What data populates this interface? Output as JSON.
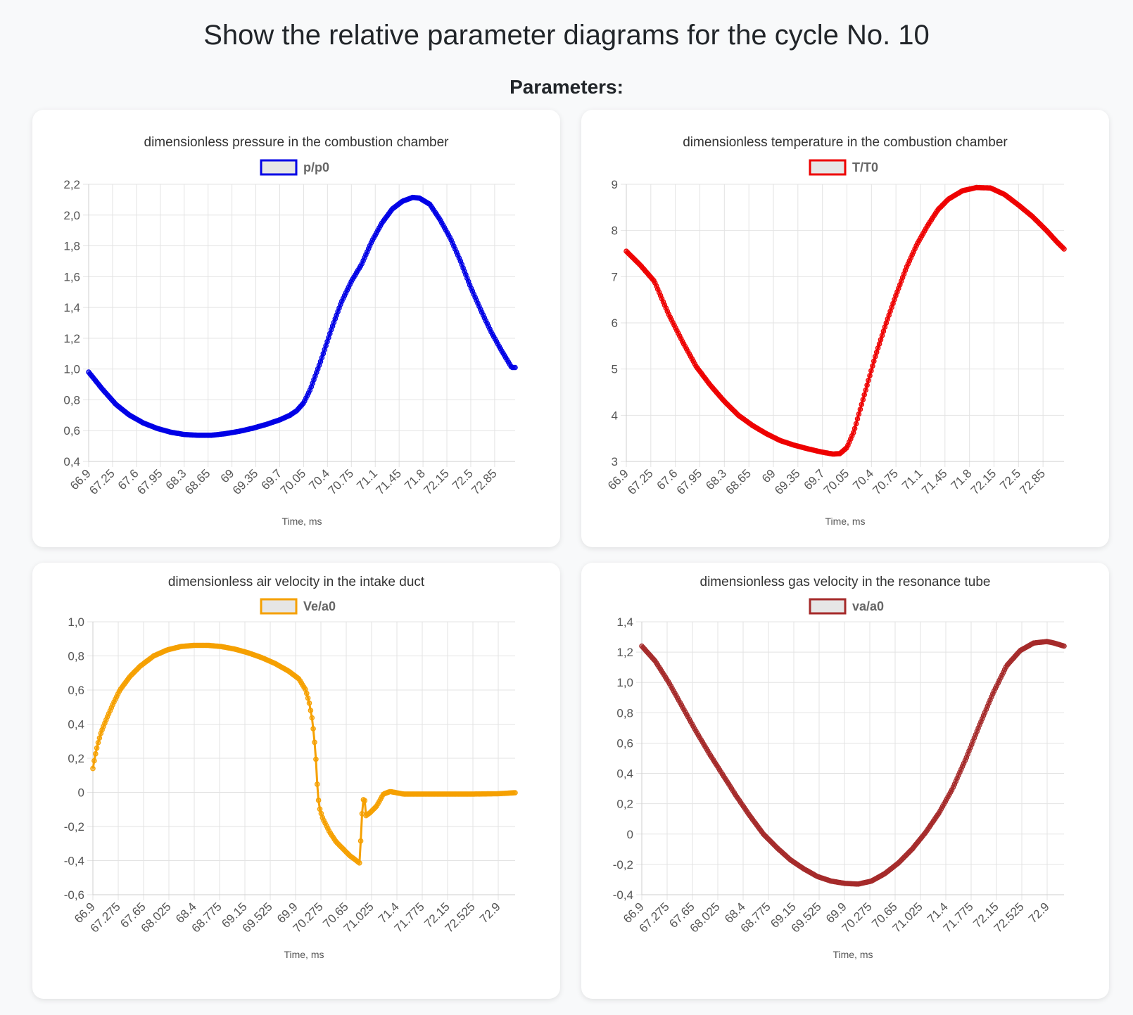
{
  "page": {
    "title": "Show the relative parameter diagrams for the cycle No. 10",
    "section_label": "Parameters:"
  },
  "chart_data": [
    {
      "id": "pressure",
      "type": "line",
      "title": "dimensionless pressure in the combustion chamber",
      "legend": "p/p0",
      "color": "#0000e6",
      "xlabel": "Time, ms",
      "ylabel": "",
      "ylim": [
        0.4,
        2.2
      ],
      "yticks": [
        "0,4",
        "0,6",
        "0,8",
        "1,0",
        "1,2",
        "1,4",
        "1,6",
        "1,8",
        "2,0",
        "2,2"
      ],
      "xlim": [
        66.9,
        73.15
      ],
      "xticks": [
        "66.9",
        "67.25",
        "67.6",
        "67.95",
        "68.3",
        "68.65",
        "69",
        "69.35",
        "69.7",
        "70.05",
        "70.4",
        "70.75",
        "71.1",
        "71.45",
        "71.8",
        "72.15",
        "72.5",
        "72.85"
      ],
      "xtick_step": 0.35,
      "curve": [
        [
          66.9,
          0.98
        ],
        [
          67.1,
          0.87
        ],
        [
          67.3,
          0.77
        ],
        [
          67.5,
          0.7
        ],
        [
          67.7,
          0.65
        ],
        [
          67.9,
          0.615
        ],
        [
          68.1,
          0.59
        ],
        [
          68.3,
          0.575
        ],
        [
          68.5,
          0.57
        ],
        [
          68.7,
          0.57
        ],
        [
          68.9,
          0.58
        ],
        [
          69.1,
          0.595
        ],
        [
          69.3,
          0.615
        ],
        [
          69.5,
          0.64
        ],
        [
          69.7,
          0.67
        ],
        [
          69.85,
          0.7
        ],
        [
          69.95,
          0.73
        ],
        [
          70.05,
          0.78
        ],
        [
          70.15,
          0.87
        ],
        [
          70.3,
          1.05
        ],
        [
          70.45,
          1.25
        ],
        [
          70.6,
          1.43
        ],
        [
          70.75,
          1.57
        ],
        [
          70.9,
          1.68
        ],
        [
          71.05,
          1.83
        ],
        [
          71.2,
          1.95
        ],
        [
          71.35,
          2.04
        ],
        [
          71.5,
          2.09
        ],
        [
          71.65,
          2.115
        ],
        [
          71.75,
          2.11
        ],
        [
          71.9,
          2.07
        ],
        [
          72.05,
          1.97
        ],
        [
          72.2,
          1.85
        ],
        [
          72.35,
          1.7
        ],
        [
          72.5,
          1.53
        ],
        [
          72.65,
          1.38
        ],
        [
          72.8,
          1.24
        ],
        [
          72.95,
          1.12
        ],
        [
          73.1,
          1.01
        ]
      ]
    },
    {
      "id": "temperature",
      "type": "line",
      "title": "dimensionless temperature in the combustion chamber",
      "legend": "T/T0",
      "color": "#ee0000",
      "xlabel": "Time, ms",
      "ylabel": "",
      "ylim": [
        3,
        9
      ],
      "yticks": [
        "3",
        "4",
        "5",
        "6",
        "7",
        "8",
        "9"
      ],
      "xlim": [
        66.9,
        73.15
      ],
      "xticks": [
        "66.9",
        "67.25",
        "67.6",
        "67.95",
        "68.3",
        "68.65",
        "69",
        "69.35",
        "69.7",
        "70.05",
        "70.4",
        "70.75",
        "71.1",
        "71.45",
        "71.8",
        "72.15",
        "72.5",
        "72.85"
      ],
      "xtick_step": 0.35,
      "curve": [
        [
          66.9,
          7.55
        ],
        [
          67.1,
          7.25
        ],
        [
          67.3,
          6.9
        ],
        [
          67.5,
          6.2
        ],
        [
          67.7,
          5.6
        ],
        [
          67.9,
          5.05
        ],
        [
          68.1,
          4.65
        ],
        [
          68.3,
          4.3
        ],
        [
          68.5,
          4.0
        ],
        [
          68.7,
          3.78
        ],
        [
          68.9,
          3.6
        ],
        [
          69.1,
          3.45
        ],
        [
          69.3,
          3.35
        ],
        [
          69.5,
          3.27
        ],
        [
          69.7,
          3.2
        ],
        [
          69.85,
          3.16
        ],
        [
          69.95,
          3.17
        ],
        [
          70.05,
          3.3
        ],
        [
          70.15,
          3.65
        ],
        [
          70.3,
          4.45
        ],
        [
          70.45,
          5.25
        ],
        [
          70.6,
          5.95
        ],
        [
          70.75,
          6.6
        ],
        [
          70.9,
          7.2
        ],
        [
          71.05,
          7.7
        ],
        [
          71.2,
          8.1
        ],
        [
          71.35,
          8.45
        ],
        [
          71.5,
          8.68
        ],
        [
          71.7,
          8.86
        ],
        [
          71.9,
          8.93
        ],
        [
          72.1,
          8.92
        ],
        [
          72.3,
          8.78
        ],
        [
          72.5,
          8.55
        ],
        [
          72.7,
          8.3
        ],
        [
          72.9,
          8.0
        ],
        [
          73.05,
          7.75
        ],
        [
          73.15,
          7.6
        ]
      ]
    },
    {
      "id": "air-velocity",
      "type": "line",
      "title": "dimensionless air velocity in the intake duct",
      "legend": "Ve/a0",
      "color": "#f5a000",
      "xlabel": "Time, ms",
      "ylabel": "",
      "ylim": [
        -0.6,
        1.0
      ],
      "yticks": [
        "-0,6",
        "-0,4",
        "-0,2",
        "0",
        "0,2",
        "0,4",
        "0,6",
        "0,8",
        "1,0"
      ],
      "xlim": [
        66.9,
        73.15
      ],
      "xticks": [
        "66.9",
        "67.275",
        "67.65",
        "68.025",
        "68.4",
        "68.775",
        "69.15",
        "69.525",
        "69.9",
        "70.275",
        "70.65",
        "71.025",
        "71.4",
        "71.775",
        "72.15",
        "72.525",
        "72.9"
      ],
      "xtick_step": 0.375,
      "curve": [
        [
          66.9,
          0.14
        ],
        [
          66.93,
          0.21
        ],
        [
          66.97,
          0.28
        ],
        [
          67.02,
          0.35
        ],
        [
          67.1,
          0.43
        ],
        [
          67.2,
          0.52
        ],
        [
          67.3,
          0.6
        ],
        [
          67.45,
          0.68
        ],
        [
          67.6,
          0.74
        ],
        [
          67.8,
          0.8
        ],
        [
          68.0,
          0.835
        ],
        [
          68.2,
          0.855
        ],
        [
          68.4,
          0.862
        ],
        [
          68.6,
          0.862
        ],
        [
          68.8,
          0.855
        ],
        [
          69.0,
          0.84
        ],
        [
          69.2,
          0.818
        ],
        [
          69.4,
          0.79
        ],
        [
          69.6,
          0.755
        ],
        [
          69.8,
          0.71
        ],
        [
          69.95,
          0.665
        ],
        [
          70.05,
          0.6
        ],
        [
          70.1,
          0.53
        ],
        [
          70.15,
          0.42
        ],
        [
          70.18,
          0.3
        ],
        [
          70.2,
          0.2
        ],
        [
          70.22,
          0.05
        ],
        [
          70.23,
          -0.02
        ],
        [
          70.26,
          -0.1
        ],
        [
          70.3,
          -0.15
        ],
        [
          70.4,
          -0.23
        ],
        [
          70.5,
          -0.29
        ],
        [
          70.6,
          -0.33
        ],
        [
          70.7,
          -0.37
        ],
        [
          70.8,
          -0.4
        ],
        [
          70.85,
          -0.415
        ],
        [
          70.87,
          -0.24
        ],
        [
          70.89,
          -0.08
        ],
        [
          70.92,
          0.0
        ],
        [
          70.93,
          -0.14
        ],
        [
          71.0,
          -0.12
        ],
        [
          71.1,
          -0.08
        ],
        [
          71.2,
          -0.01
        ],
        [
          71.3,
          0.005
        ],
        [
          71.5,
          -0.01
        ],
        [
          72.0,
          -0.01
        ],
        [
          72.5,
          -0.01
        ],
        [
          72.9,
          -0.008
        ],
        [
          73.15,
          -0.002
        ]
      ]
    },
    {
      "id": "gas-velocity",
      "type": "line",
      "title": "dimensionless gas velocity in the resonance tube",
      "legend": "va/a0",
      "color": "#a52a2a",
      "xlabel": "Time, ms",
      "ylabel": "",
      "ylim": [
        -0.4,
        1.4
      ],
      "yticks": [
        "-0,4",
        "-0,2",
        "0",
        "0,2",
        "0,4",
        "0,6",
        "0,8",
        "1,0",
        "1,2",
        "1,4"
      ],
      "xlim": [
        66.9,
        73.15
      ],
      "xticks": [
        "66.9",
        "67.275",
        "67.65",
        "68.025",
        "68.4",
        "68.775",
        "69.15",
        "69.525",
        "69.9",
        "70.275",
        "70.65",
        "71.025",
        "71.4",
        "71.775",
        "72.15",
        "72.525",
        "72.9"
      ],
      "xtick_step": 0.375,
      "curve": [
        [
          66.9,
          1.24
        ],
        [
          67.1,
          1.14
        ],
        [
          67.3,
          1.0
        ],
        [
          67.5,
          0.84
        ],
        [
          67.7,
          0.68
        ],
        [
          67.9,
          0.53
        ],
        [
          68.1,
          0.39
        ],
        [
          68.3,
          0.25
        ],
        [
          68.5,
          0.12
        ],
        [
          68.7,
          0.0
        ],
        [
          68.9,
          -0.09
        ],
        [
          69.1,
          -0.17
        ],
        [
          69.3,
          -0.23
        ],
        [
          69.5,
          -0.28
        ],
        [
          69.7,
          -0.31
        ],
        [
          69.9,
          -0.325
        ],
        [
          70.1,
          -0.33
        ],
        [
          70.3,
          -0.31
        ],
        [
          70.5,
          -0.26
        ],
        [
          70.7,
          -0.19
        ],
        [
          70.9,
          -0.1
        ],
        [
          71.1,
          0.01
        ],
        [
          71.3,
          0.14
        ],
        [
          71.5,
          0.3
        ],
        [
          71.7,
          0.5
        ],
        [
          71.9,
          0.72
        ],
        [
          72.1,
          0.93
        ],
        [
          72.3,
          1.11
        ],
        [
          72.5,
          1.21
        ],
        [
          72.7,
          1.26
        ],
        [
          72.9,
          1.27
        ],
        [
          73.0,
          1.26
        ],
        [
          73.15,
          1.24
        ]
      ]
    }
  ]
}
